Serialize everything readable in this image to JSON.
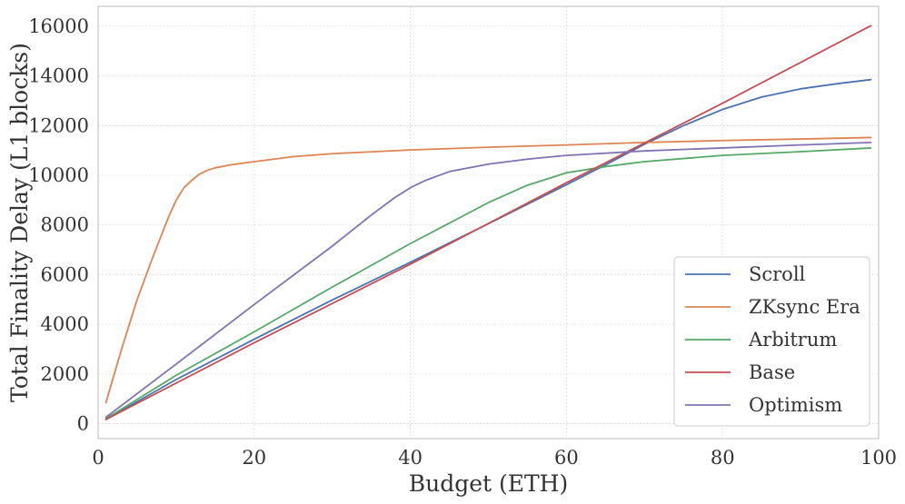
{
  "chart_data": {
    "type": "line",
    "title": "",
    "xlabel": "Budget (ETH)",
    "ylabel": "Total Finality Delay (L1 blocks)",
    "xlim": [
      0,
      100
    ],
    "ylim": [
      -600,
      16800
    ],
    "xticks": [
      0,
      20,
      40,
      60,
      80,
      100
    ],
    "yticks": [
      0,
      2000,
      4000,
      6000,
      8000,
      10000,
      12000,
      14000,
      16000
    ],
    "grid": true,
    "legend": {
      "placement": "lower-right"
    },
    "series": [
      {
        "name": "Scroll",
        "color": "#4c72b0",
        "x": [
          1,
          10,
          20,
          30,
          40,
          50,
          60,
          65,
          70,
          75,
          80,
          85,
          90,
          95,
          99
        ],
        "y": [
          170,
          1780,
          3400,
          4980,
          6500,
          8050,
          9620,
          10420,
          11250,
          12000,
          12650,
          13150,
          13480,
          13700,
          13850
        ]
      },
      {
        "name": "ZKsync Era",
        "color": "#dd8452",
        "x": [
          1,
          3,
          5,
          7,
          9,
          10,
          11,
          12,
          13,
          14,
          15,
          17,
          20,
          25,
          30,
          40,
          50,
          60,
          70,
          80,
          90,
          99
        ],
        "y": [
          850,
          3000,
          5000,
          6700,
          8300,
          9000,
          9500,
          9800,
          10050,
          10200,
          10300,
          10420,
          10550,
          10750,
          10870,
          11020,
          11130,
          11220,
          11320,
          11400,
          11460,
          11520
        ]
      },
      {
        "name": "Arbitrum",
        "color": "#55a868",
        "x": [
          1,
          10,
          20,
          30,
          40,
          50,
          55,
          60,
          65,
          70,
          80,
          90,
          99
        ],
        "y": [
          200,
          1950,
          3700,
          5500,
          7250,
          8900,
          9600,
          10100,
          10350,
          10550,
          10800,
          10950,
          11100
        ]
      },
      {
        "name": "Base",
        "color": "#c44e52",
        "x": [
          1,
          20,
          40,
          60,
          80,
          99
        ],
        "y": [
          170,
          3260,
          6420,
          9700,
          12900,
          16020
        ]
      },
      {
        "name": "Optimism",
        "color": "#8172b3",
        "x": [
          1,
          10,
          20,
          30,
          35,
          38,
          40,
          42,
          45,
          50,
          55,
          60,
          70,
          80,
          90,
          99
        ],
        "y": [
          260,
          2400,
          4800,
          7150,
          8400,
          9100,
          9500,
          9800,
          10150,
          10450,
          10650,
          10800,
          10980,
          11100,
          11220,
          11320
        ]
      }
    ]
  }
}
